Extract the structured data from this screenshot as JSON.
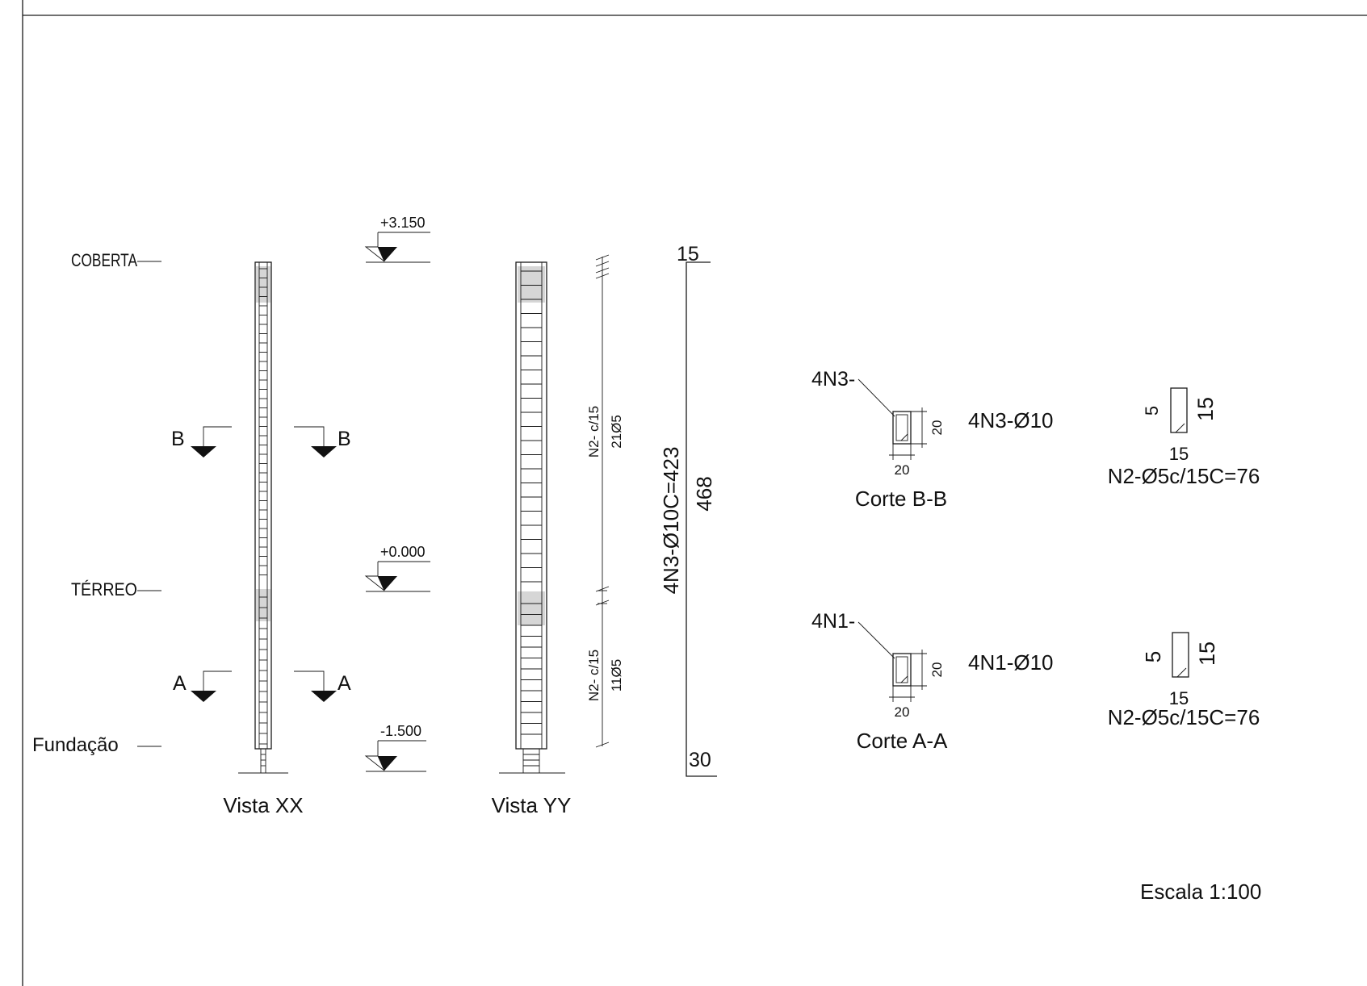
{
  "levels": {
    "coberta": "COBERTA",
    "terreo": "TÉRREO",
    "fundacao": "Fundação"
  },
  "elevations": {
    "top": "+3.150",
    "ground": "+0.000",
    "foundation": "-1.500"
  },
  "sections": {
    "b_left": "B",
    "b_right": "B",
    "a_left": "A",
    "a_right": "A"
  },
  "views": {
    "xx_title": "Vista XX",
    "yy_title": "Vista YY"
  },
  "stirrups": {
    "upper_spacing": "N2- c/15",
    "upper_count": "21Ø5",
    "lower_spacing": "N2- c/15",
    "lower_count": "11Ø5"
  },
  "main_bar": {
    "label": "4N3-Ø10C=423",
    "length": "468",
    "top_hook": "15",
    "bottom_hook": "30"
  },
  "section_bb": {
    "leader": "4N3-",
    "dim_h": "20",
    "dim_w": "20",
    "bar_label": "4N3-Ø10",
    "title": "Corte B-B",
    "stirrup_hook": "5",
    "stirrup_h": "15",
    "stirrup_w": "15",
    "stirrup_label": "N2-Ø5c/15C=76"
  },
  "section_aa": {
    "leader": "4N1-",
    "dim_h": "20",
    "dim_w": "20",
    "bar_label": "4N1-Ø10",
    "title": "Corte A-A",
    "stirrup_hook": "5",
    "stirrup_h": "15",
    "stirrup_w": "15",
    "stirrup_label": "N2-Ø5c/15C=76"
  },
  "scale": "Escala 1:100"
}
